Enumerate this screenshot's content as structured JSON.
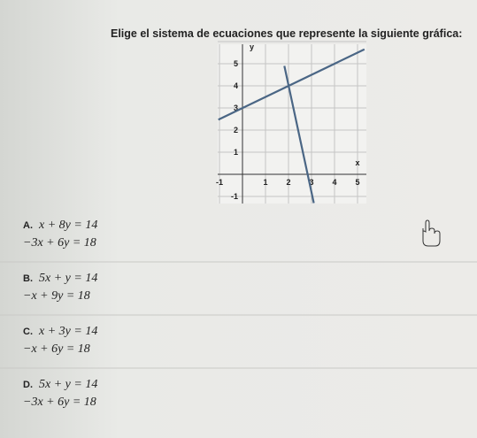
{
  "question": "Elige el sistema de ecuaciones que represente la siguiente gráfica:",
  "graph": {
    "x_label": "x",
    "y_label": "y",
    "x_ticks": [
      "-1",
      "1",
      "2",
      "3",
      "4",
      "5"
    ],
    "y_ticks": [
      "5",
      "4",
      "3",
      "2",
      "1",
      "-1"
    ]
  },
  "options": [
    {
      "letter": "A.",
      "equations": [
        "x + 8y = 14",
        "−3x + 6y = 18"
      ]
    },
    {
      "letter": "B.",
      "equations": [
        "5x + y = 14",
        "−x + 9y = 18"
      ]
    },
    {
      "letter": "C.",
      "equations": [
        "x + 3y = 14",
        "−x + 6y = 18"
      ]
    },
    {
      "letter": "D.",
      "equations": [
        "5x + y = 14",
        "−3x + 6y = 18"
      ]
    }
  ]
}
